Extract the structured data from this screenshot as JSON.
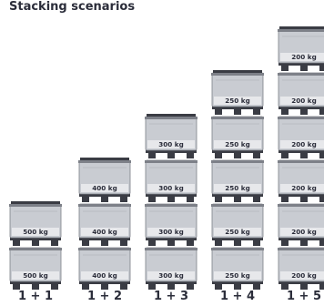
{
  "title": "Stacking scenarios",
  "colors": {
    "box_fill": "#c9ccd2",
    "box_top": "#d6d8dd",
    "box_border": "#7d8088",
    "label_band": "#e7e8eb",
    "pallet": "#3a3c44",
    "text": "#2b2d3a"
  },
  "scenarios": [
    {
      "label": "1 + 1",
      "boxes": [
        "500 kg",
        "500 kg"
      ]
    },
    {
      "label": "1 + 2",
      "boxes": [
        "400 kg",
        "400 kg",
        "400 kg"
      ]
    },
    {
      "label": "1 + 3",
      "boxes": [
        "300 kg",
        "300 kg",
        "300 kg",
        "300 kg"
      ]
    },
    {
      "label": "1 + 4",
      "boxes": [
        "250 kg",
        "250 kg",
        "250 kg",
        "250 kg",
        "250 kg"
      ]
    },
    {
      "label": "1 + 5",
      "boxes": [
        "200 kg",
        "200 kg",
        "200 kg",
        "200 kg",
        "200 kg",
        "200 kg"
      ]
    }
  ]
}
